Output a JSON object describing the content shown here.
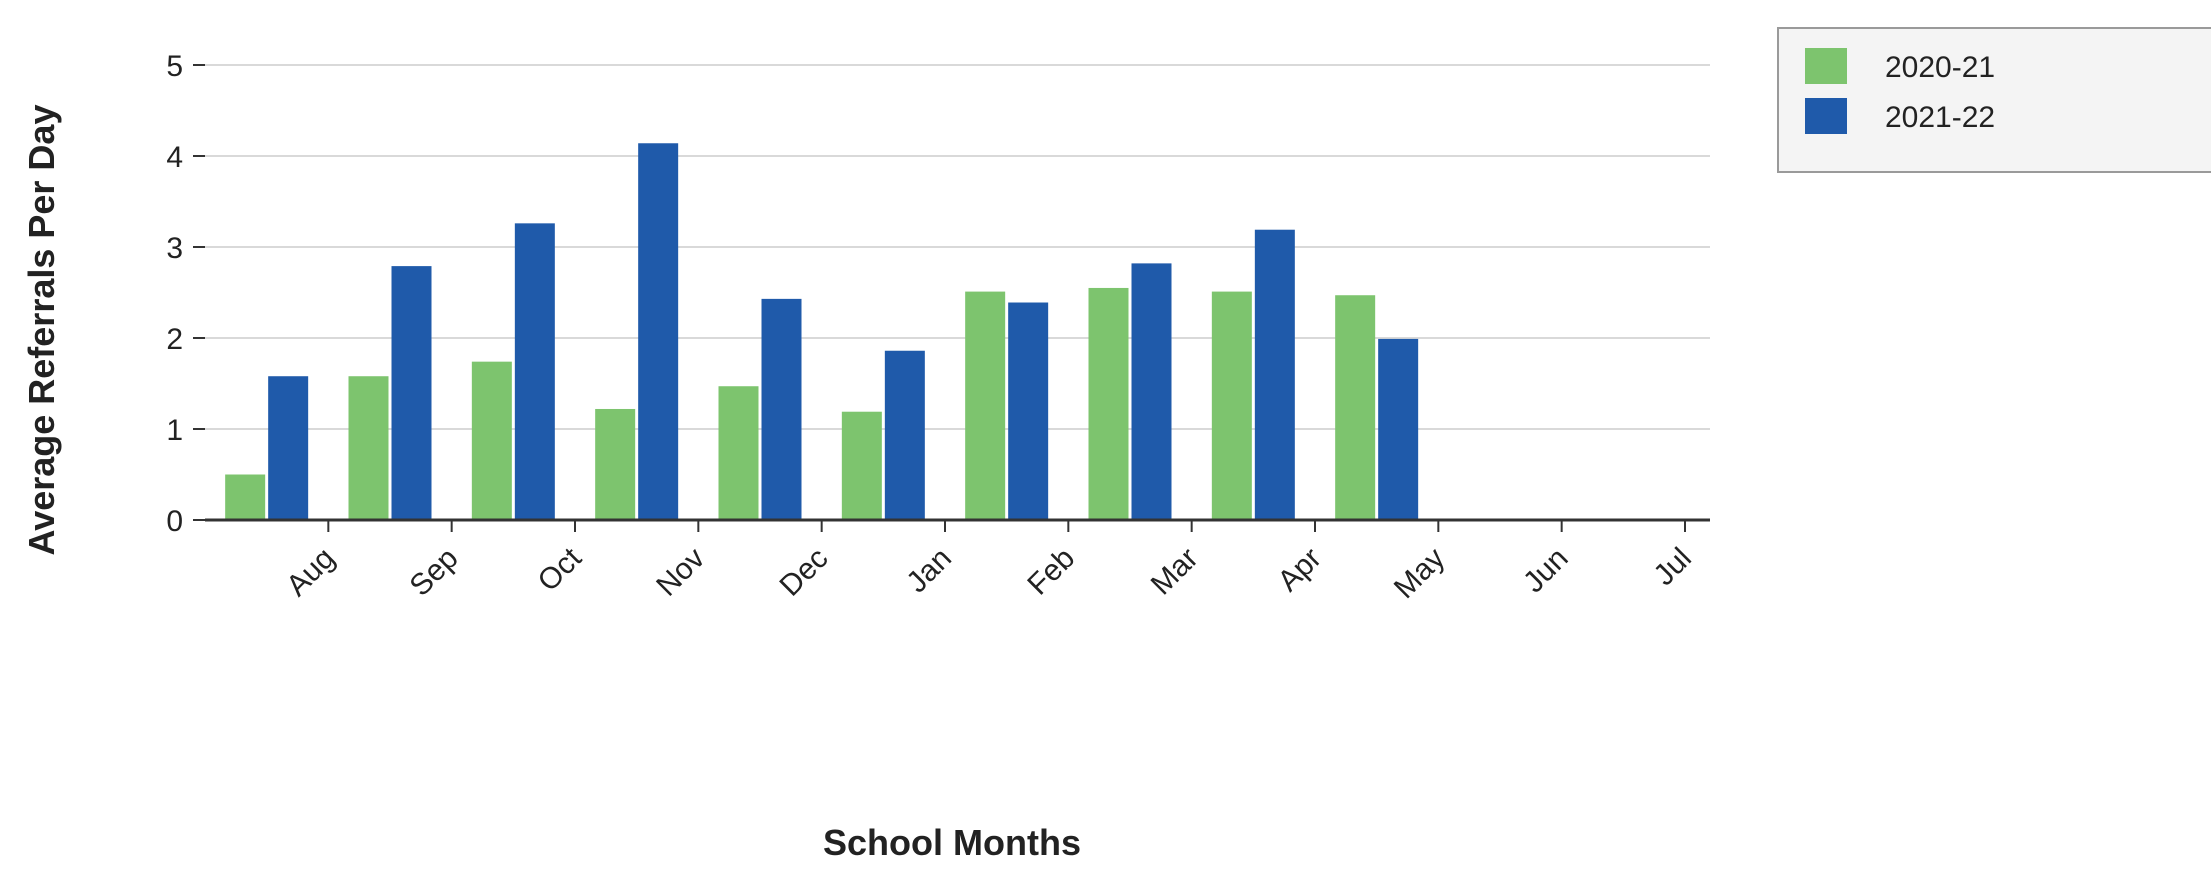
{
  "chart_data": {
    "type": "bar",
    "xlabel": "School Months",
    "ylabel": "Average Referrals Per Day",
    "categories": [
      "Aug",
      "Sep",
      "Oct",
      "Nov",
      "Dec",
      "Jan",
      "Feb",
      "Mar",
      "Apr",
      "May",
      "Jun",
      "Jul"
    ],
    "yticks": [
      "0",
      "1",
      "2",
      "3",
      "4",
      "5"
    ],
    "ylim": [
      0,
      5
    ],
    "grid": true,
    "legend_position": "top-right",
    "series": [
      {
        "name": "2020-21",
        "color": "#7dc46e",
        "values": [
          0.5,
          1.58,
          1.74,
          1.22,
          1.47,
          1.19,
          2.51,
          2.55,
          2.51,
          2.47,
          null,
          null
        ]
      },
      {
        "name": "2021-22",
        "color": "#1f5aaa",
        "values": [
          1.58,
          2.79,
          3.26,
          4.14,
          2.43,
          1.86,
          2.39,
          2.82,
          3.19,
          1.99,
          null,
          null
        ]
      }
    ]
  }
}
